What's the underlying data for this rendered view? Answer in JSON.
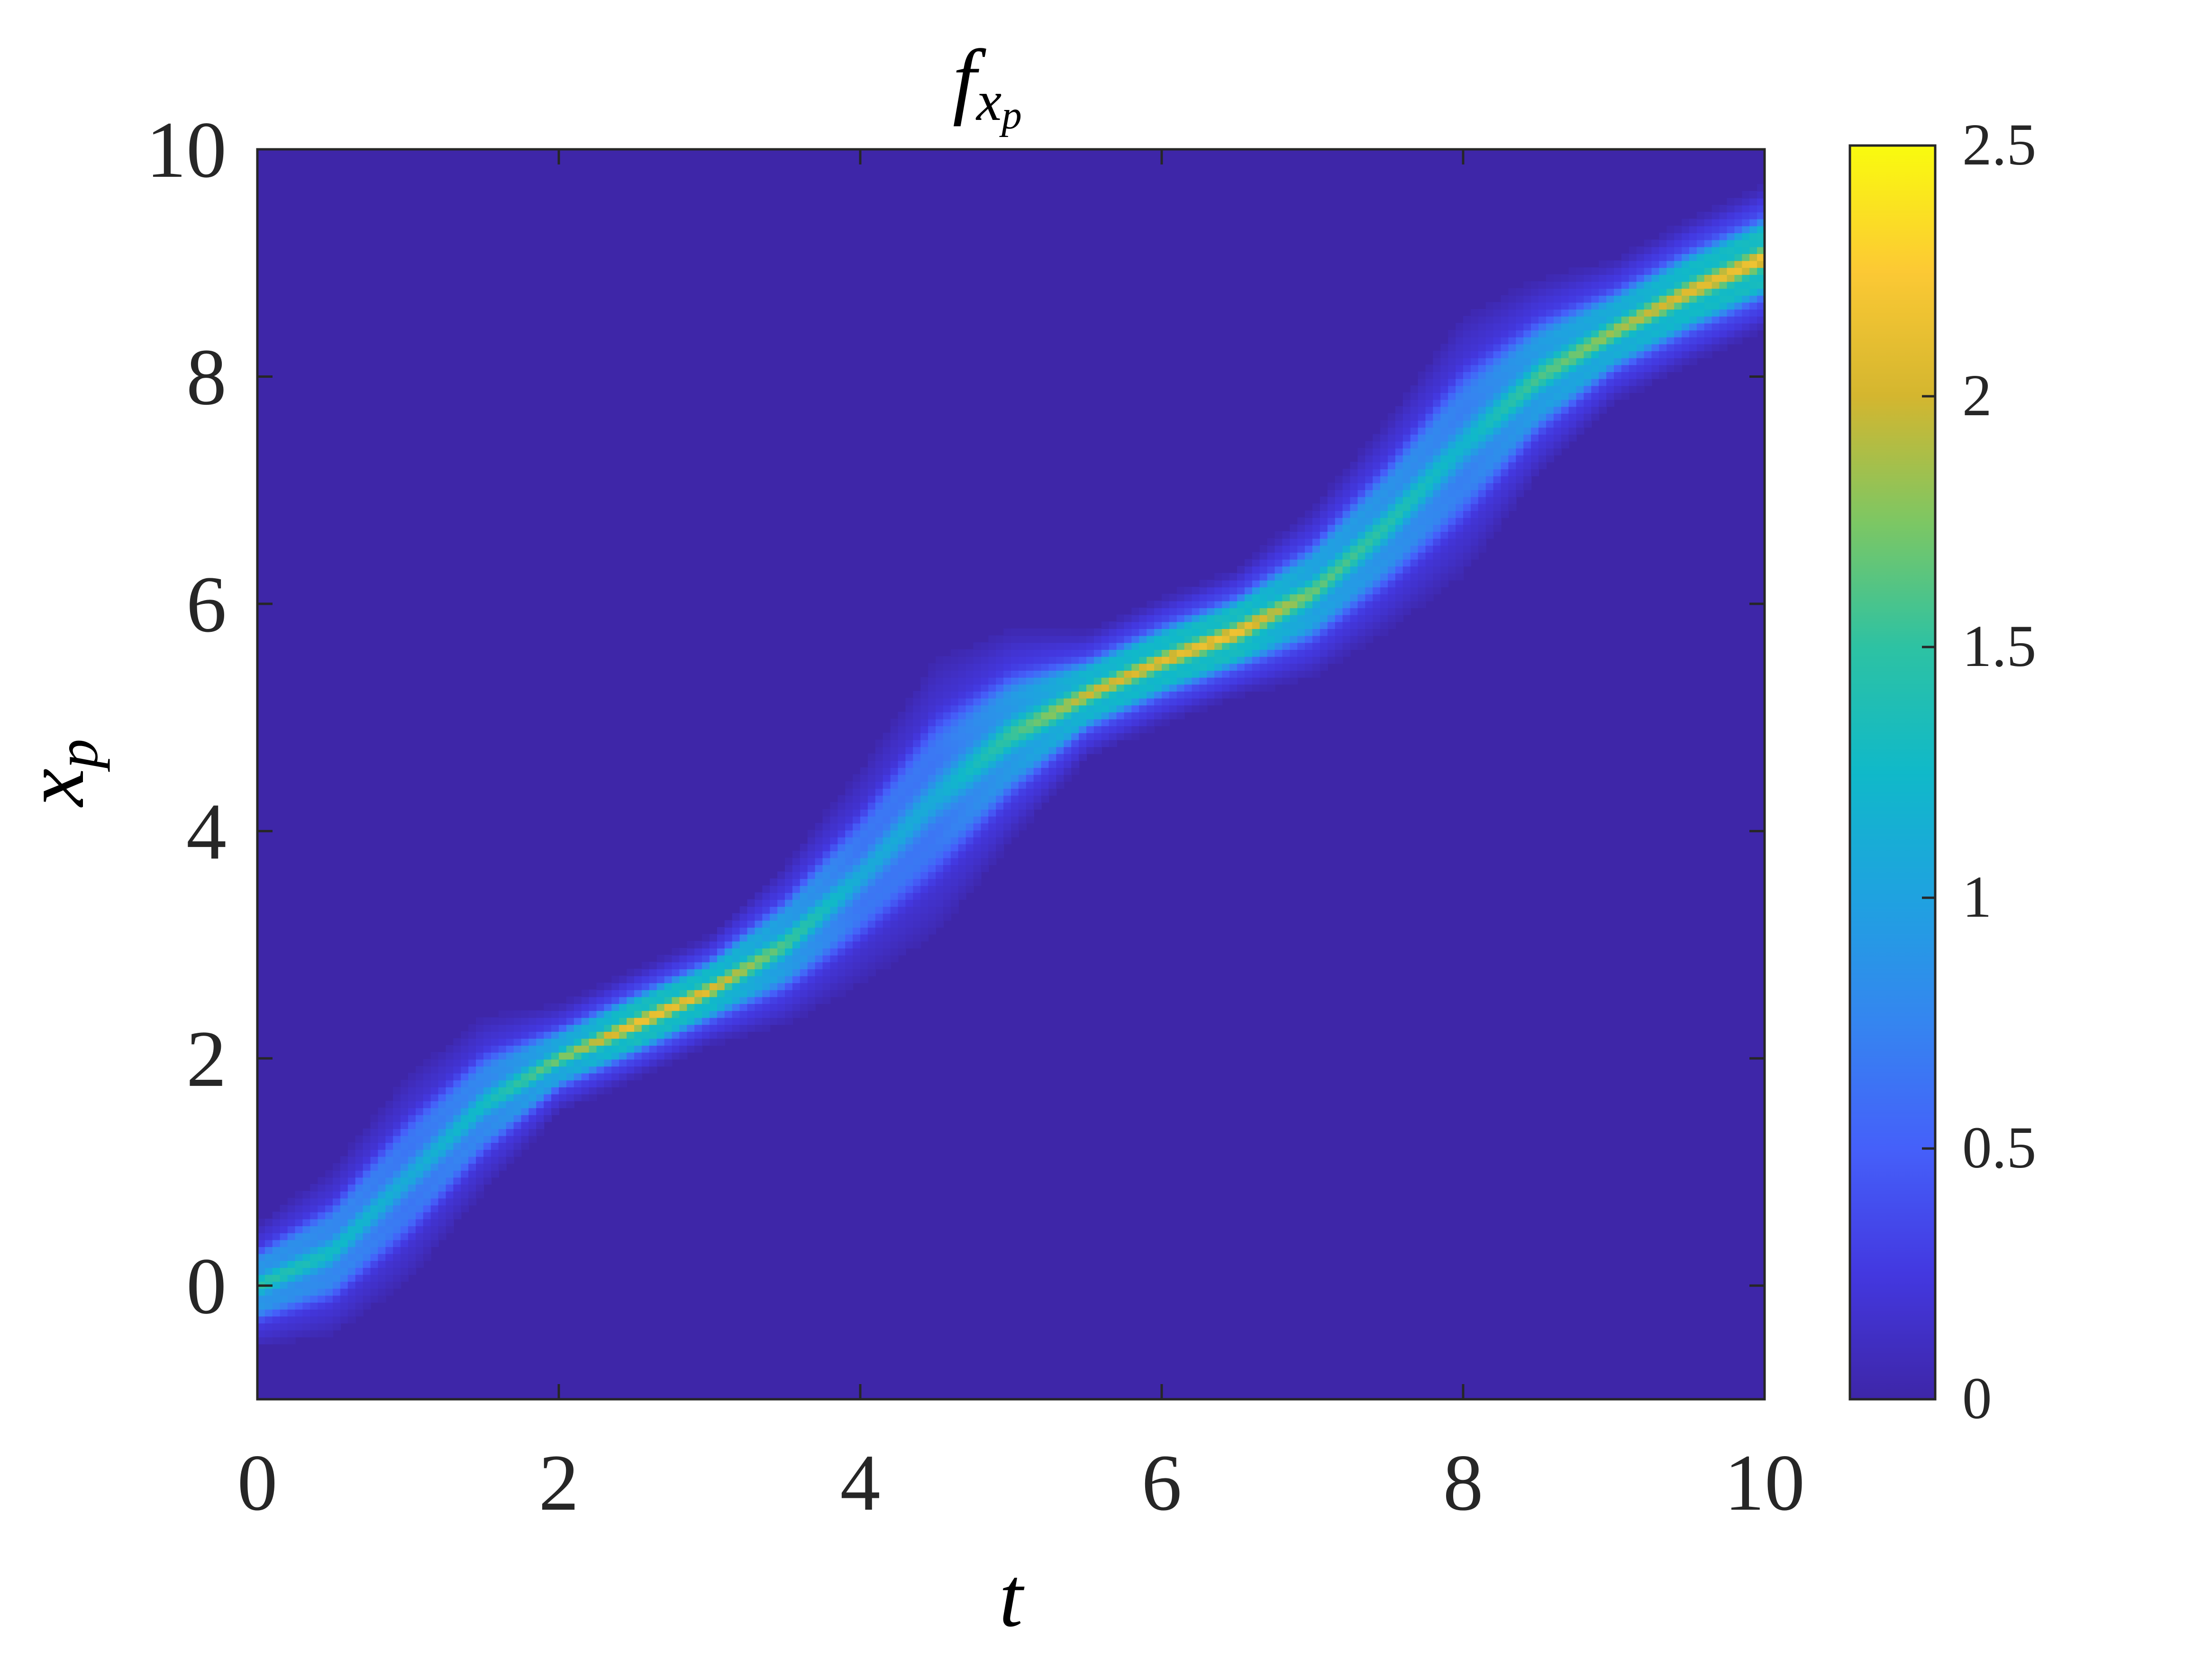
{
  "chart_data": {
    "type": "heatmap",
    "title": "f",
    "title_subscript": "x",
    "title_subscript2": "p",
    "xlabel": "t",
    "ylabel": "x",
    "ylabel_subscript": "p",
    "xlim": [
      0,
      10
    ],
    "ylim": [
      -1,
      10
    ],
    "xticks": [
      0,
      2,
      4,
      6,
      8,
      10
    ],
    "xtick_labels": [
      "0",
      "2",
      "4",
      "6",
      "8",
      "10"
    ],
    "yticks": [
      0,
      2,
      4,
      6,
      8,
      10
    ],
    "ytick_labels": [
      "0",
      "2",
      "4",
      "6",
      "8",
      "10"
    ],
    "colorbar": {
      "clim": [
        0,
        2.5
      ],
      "ticks": [
        0,
        0.5,
        1,
        1.5,
        2,
        2.5
      ],
      "tick_labels": [
        "0",
        "0.5",
        "1",
        "1.5",
        "2",
        "2.5"
      ],
      "colormap": "parula"
    },
    "band_center": [
      [
        0,
        0.0
      ],
      [
        0.5,
        0.3
      ],
      [
        1.0,
        0.95
      ],
      [
        1.5,
        1.6
      ],
      [
        2.0,
        2.0
      ],
      [
        2.5,
        2.3
      ],
      [
        3.0,
        2.6
      ],
      [
        3.5,
        3.0
      ],
      [
        4.0,
        3.6
      ],
      [
        4.5,
        4.3
      ],
      [
        5.0,
        4.85
      ],
      [
        5.5,
        5.2
      ],
      [
        6.0,
        5.5
      ],
      [
        6.5,
        5.75
      ],
      [
        7.0,
        6.1
      ],
      [
        7.5,
        6.7
      ],
      [
        8.0,
        7.4
      ],
      [
        8.5,
        8.0
      ],
      [
        9.0,
        8.4
      ],
      [
        9.5,
        8.75
      ],
      [
        10.0,
        9.05
      ]
    ],
    "band_halfwidth": [
      [
        0,
        0.35
      ],
      [
        1.0,
        0.6
      ],
      [
        1.5,
        0.5
      ],
      [
        2.0,
        0.3
      ],
      [
        3.0,
        0.3
      ],
      [
        3.5,
        0.45
      ],
      [
        4.5,
        0.8
      ],
      [
        5.0,
        0.6
      ],
      [
        5.5,
        0.35
      ],
      [
        6.5,
        0.35
      ],
      [
        7.5,
        0.6
      ],
      [
        8.0,
        0.75
      ],
      [
        8.5,
        0.55
      ],
      [
        9.0,
        0.4
      ],
      [
        10.0,
        0.4
      ]
    ],
    "band_peak": [
      [
        0,
        1.5
      ],
      [
        1.0,
        1.1
      ],
      [
        1.5,
        1.3
      ],
      [
        2.5,
        2.2
      ],
      [
        3.0,
        2.1
      ],
      [
        4.0,
        1.1
      ],
      [
        4.5,
        1.1
      ],
      [
        5.5,
        2.0
      ],
      [
        6.5,
        2.2
      ],
      [
        7.0,
        1.7
      ],
      [
        8.0,
        1.2
      ],
      [
        8.5,
        1.6
      ],
      [
        9.5,
        2.1
      ],
      [
        10.0,
        2.2
      ]
    ],
    "background_color": "#3e26a8"
  }
}
